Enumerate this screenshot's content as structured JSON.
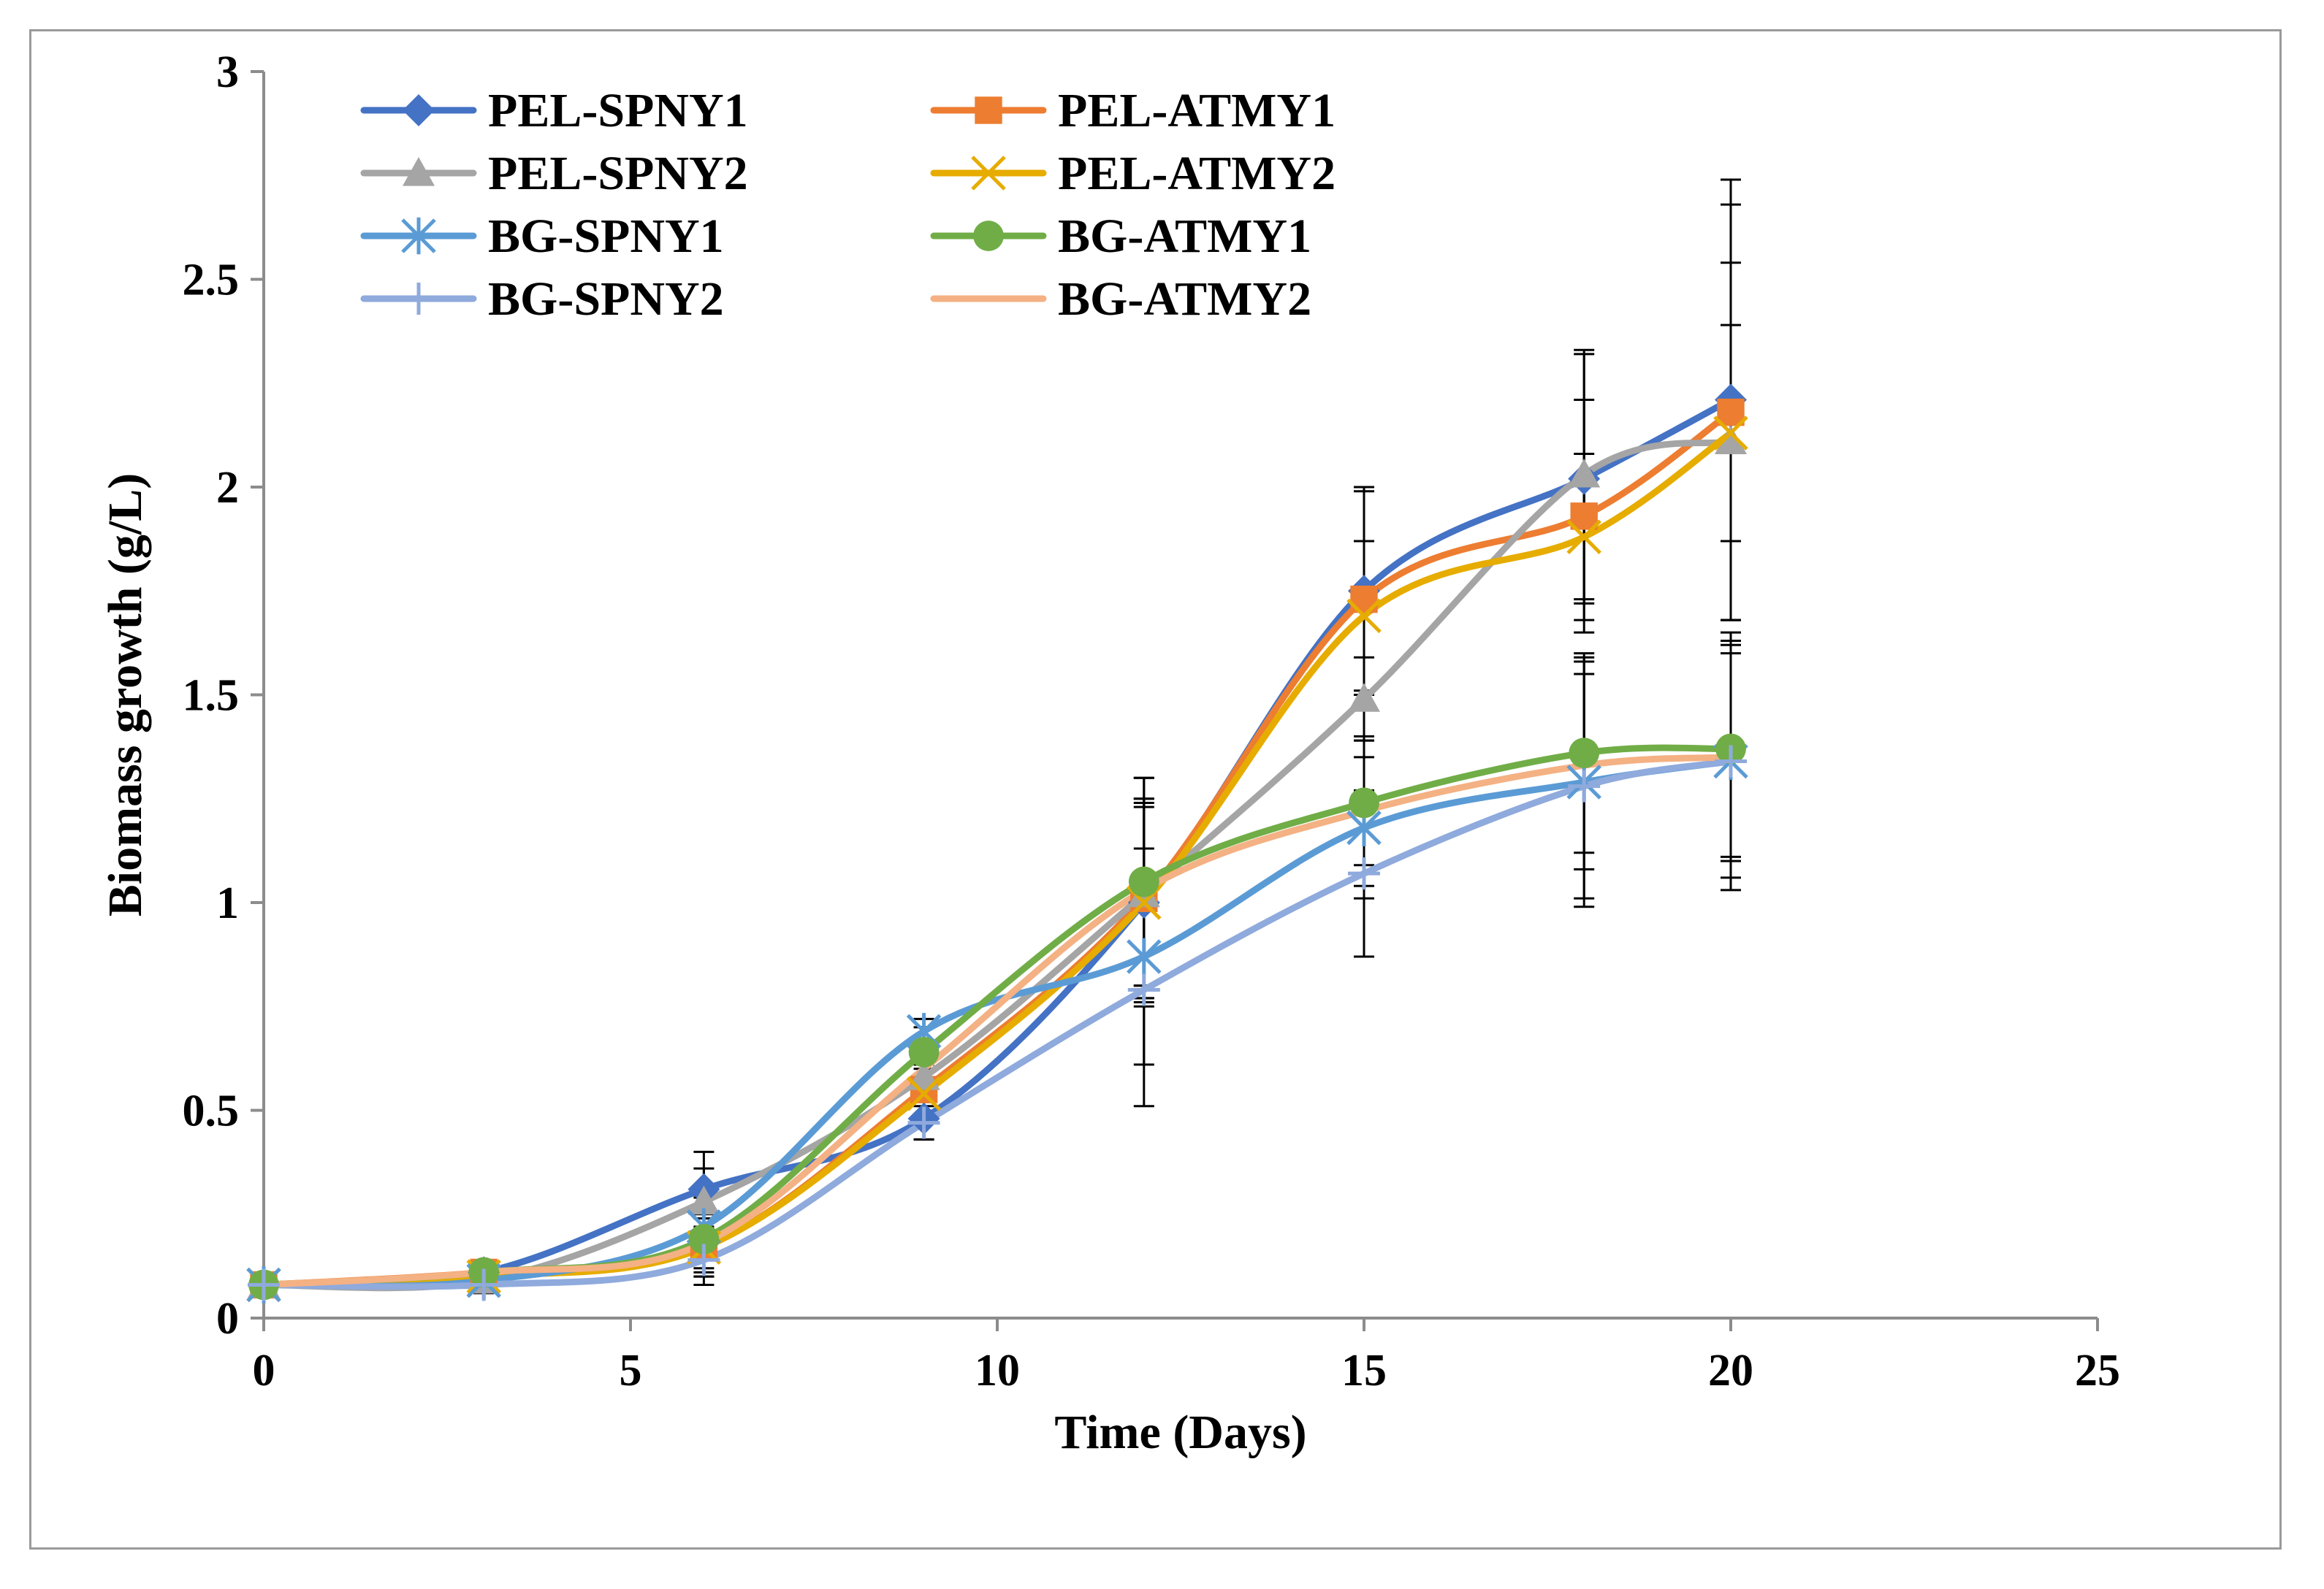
{
  "chart_data": {
    "type": "line",
    "xlabel": "Time (Days)",
    "ylabel": "Biomass growth (g/L)",
    "xlim": [
      0,
      25
    ],
    "ylim": [
      0,
      3
    ],
    "xticks": [
      "0",
      "5",
      "10",
      "15",
      "20",
      "25"
    ],
    "yticks": [
      "0",
      "0.5",
      "1",
      "1.5",
      "2",
      "2.5",
      "3"
    ],
    "grid": false,
    "legend_position": "top-left",
    "error_bar_color": "#000000",
    "series": [
      {
        "name": "PEL-SPNY1",
        "color": "#4472c4",
        "marker": "diamond",
        "x": [
          0,
          3,
          6,
          9,
          12,
          15,
          18,
          20
        ],
        "y": [
          0.08,
          0.11,
          0.31,
          0.48,
          1.0,
          1.75,
          2.02,
          2.21
        ],
        "err": [
          0.01,
          0.02,
          0.09,
          0.05,
          0.25,
          0.25,
          0.3,
          0.53
        ]
      },
      {
        "name": "PEL-ATMY1",
        "color": "#ed7d31",
        "marker": "square",
        "x": [
          0,
          3,
          6,
          9,
          12,
          15,
          18,
          20
        ],
        "y": [
          0.08,
          0.11,
          0.17,
          0.55,
          1.01,
          1.73,
          1.93,
          2.18
        ],
        "err": [
          0.01,
          0.02,
          0.07,
          0.06,
          0.24,
          0.26,
          0.28,
          0.5
        ]
      },
      {
        "name": "PEL-SPNY2",
        "color": "#a5a5a5",
        "marker": "triangle",
        "x": [
          0,
          3,
          6,
          9,
          12,
          15,
          18,
          20
        ],
        "y": [
          0.08,
          0.09,
          0.28,
          0.58,
          1.02,
          1.49,
          2.03,
          2.11
        ],
        "err": [
          0.01,
          0.02,
          0.08,
          0.06,
          0.22,
          0.1,
          0.3,
          0.43
        ]
      },
      {
        "name": "PEL-ATMY2",
        "color": "#e6ac00",
        "marker": "x",
        "x": [
          0,
          3,
          6,
          9,
          12,
          15,
          18,
          20
        ],
        "y": [
          0.08,
          0.1,
          0.17,
          0.54,
          1.0,
          1.69,
          1.88,
          2.13
        ],
        "err": [
          0.01,
          0.02,
          0.07,
          0.06,
          0.23,
          0.18,
          0.2,
          0.26
        ]
      },
      {
        "name": "BG-SPNY1",
        "color": "#5b9bd5",
        "marker": "asterisk",
        "x": [
          0,
          3,
          6,
          9,
          12,
          15,
          18,
          20
        ],
        "y": [
          0.08,
          0.09,
          0.22,
          0.69,
          0.87,
          1.18,
          1.29,
          1.34
        ],
        "err": [
          0.01,
          0.02,
          0.07,
          0.03,
          0.26,
          0.17,
          0.3,
          0.28
        ]
      },
      {
        "name": "BG-ATMY1",
        "color": "#70ad47",
        "marker": "circle",
        "x": [
          0,
          3,
          6,
          9,
          12,
          15,
          18,
          20
        ],
        "y": [
          0.08,
          0.11,
          0.19,
          0.64,
          1.05,
          1.24,
          1.36,
          1.37
        ],
        "err": [
          0.01,
          0.02,
          0.07,
          0.06,
          0.25,
          0.15,
          0.24,
          0.26
        ]
      },
      {
        "name": "BG-SPNY2",
        "color": "#8faadc",
        "marker": "plus",
        "x": [
          0,
          3,
          6,
          9,
          12,
          15,
          18,
          20
        ],
        "y": [
          0.08,
          0.08,
          0.14,
          0.47,
          0.79,
          1.07,
          1.28,
          1.34
        ],
        "err": [
          0.01,
          0.02,
          0.06,
          0.04,
          0.28,
          0.2,
          0.27,
          0.31
        ]
      },
      {
        "name": "BG-ATMY2",
        "color": "#f4b183",
        "marker": "none",
        "x": [
          0,
          3,
          6,
          9,
          12,
          15,
          18,
          20
        ],
        "y": [
          0.08,
          0.11,
          0.18,
          0.6,
          1.03,
          1.22,
          1.33,
          1.35
        ],
        "err": [
          0.01,
          0.02,
          0.07,
          0.05,
          0.27,
          0.18,
          0.25,
          0.25
        ]
      }
    ]
  }
}
